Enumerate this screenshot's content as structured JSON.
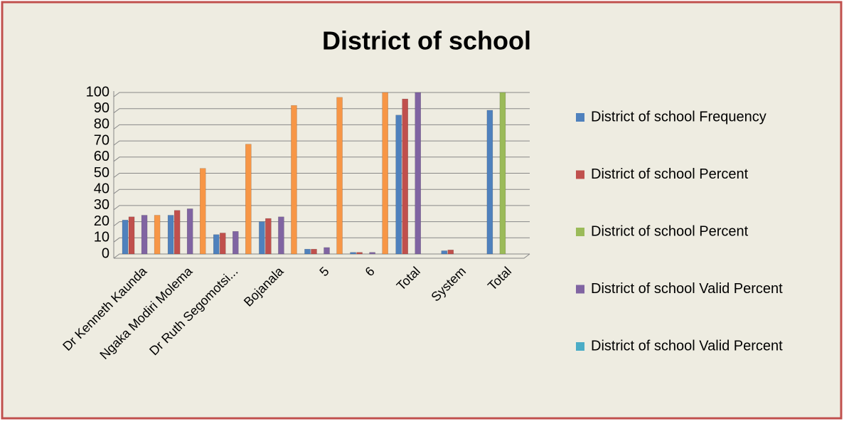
{
  "chart_data": {
    "type": "bar",
    "title": "District of school",
    "categories": [
      "Dr Kenneth Kaunda",
      "Ngaka Modiri Molema",
      "Dr Ruth Segomotsi...",
      "Bojanala",
      "5",
      "6",
      "Total",
      "System",
      "Total"
    ],
    "series": [
      {
        "name": "District of school Frequency",
        "color": "#4f81bd",
        "values": [
          21,
          24,
          12,
          20,
          3,
          1,
          86,
          2,
          89
        ]
      },
      {
        "name": "District of school Percent",
        "color": "#c0504d",
        "values": [
          23,
          27,
          13,
          22,
          3,
          1,
          96,
          2.5,
          null
        ]
      },
      {
        "name": "District of school Percent",
        "color": "#9bbb59",
        "values": [
          null,
          null,
          null,
          null,
          null,
          null,
          null,
          null,
          100
        ]
      },
      {
        "name": "District of school Valid Percent",
        "color": "#8064a2",
        "values": [
          24,
          28,
          14,
          23,
          4,
          1,
          100,
          null,
          null
        ]
      },
      {
        "name": "District of school Valid Percent",
        "color": "#4bacc6",
        "values": [
          null,
          null,
          null,
          null,
          null,
          null,
          null,
          null,
          null
        ]
      },
      {
        "color": "#f79646",
        "values": [
          24,
          53,
          68,
          92,
          97,
          100,
          null,
          null,
          null
        ]
      }
    ],
    "ylim": [
      0,
      100
    ],
    "yticks": [
      0,
      10,
      20,
      30,
      40,
      50,
      60,
      70,
      80,
      90,
      100
    ],
    "grid": true,
    "legend": "right"
  }
}
